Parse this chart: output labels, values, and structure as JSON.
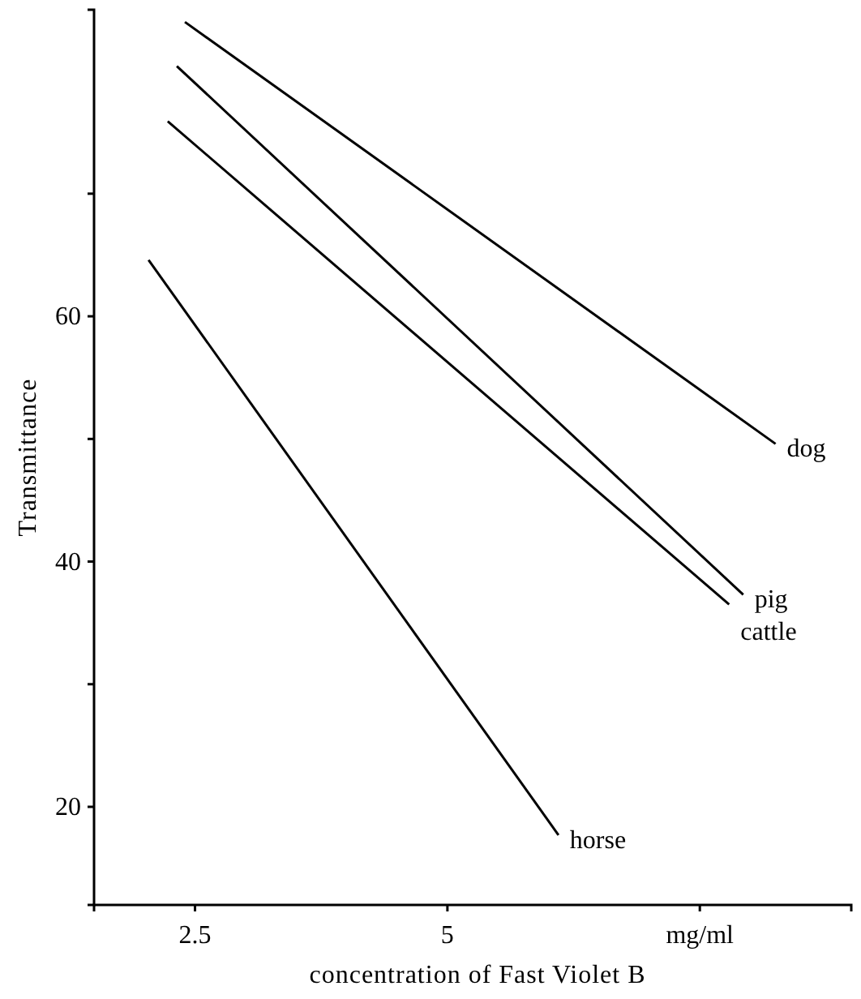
{
  "chart_data": {
    "type": "line",
    "xlabel": "concentration of Fast Violet B",
    "ylabel": "Transmittance",
    "xlim": [
      1.5,
      9
    ],
    "xticks": [
      2.5,
      5,
      {
        "value": 7.5,
        "label": "mg/ml"
      }
    ],
    "ylim": [
      12,
      85
    ],
    "yticks": [
      20,
      {
        "value": 30,
        "label": null
      },
      40,
      {
        "value": 50,
        "label": null
      },
      60,
      {
        "value": 70,
        "label": null
      }
    ],
    "grid": false,
    "legend": false,
    "marker": "none",
    "line_style": "solid",
    "series": [
      {
        "name": "dog",
        "color": "#000000",
        "x": [
          2.4,
          8.25
        ],
        "values": [
          84,
          49.6
        ]
      },
      {
        "name": "pig",
        "color": "#000000",
        "x": [
          2.32,
          7.93
        ],
        "values": [
          80.4,
          37.3
        ]
      },
      {
        "name": "cattle",
        "color": "#000000",
        "x": [
          2.23,
          7.79
        ],
        "values": [
          75.9,
          36.5
        ]
      },
      {
        "name": "horse",
        "color": "#000000",
        "x": [
          2.04,
          6.1
        ],
        "values": [
          64.6,
          17.7
        ]
      }
    ]
  }
}
